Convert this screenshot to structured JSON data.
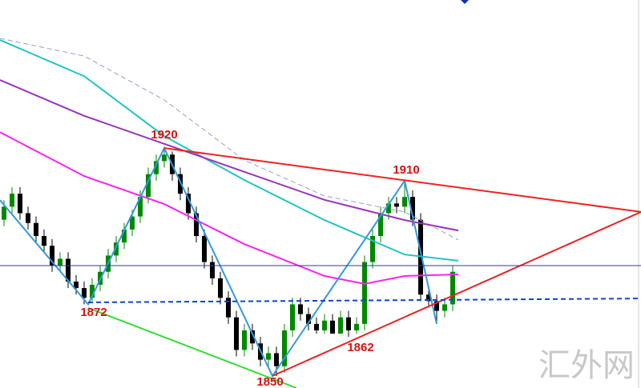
{
  "chart_data": {
    "type": "candlestick",
    "xlim": [
      -0.5,
      79.5
    ],
    "ylim": [
      1846.3,
      1965.5
    ],
    "up_color": "#008800",
    "down_color": "#000000",
    "open": [
      1898,
      1902,
      1906,
      1900,
      1897,
      1893,
      1890,
      1884,
      1886,
      1879,
      1877,
      1874,
      1878,
      1882,
      1887,
      1891,
      1895,
      1899,
      1905,
      1912,
      1916,
      1918,
      1912,
      1906,
      1900,
      1893,
      1885,
      1880,
      1874,
      1868,
      1858,
      1864,
      1860,
      1855,
      1857,
      1853,
      1864,
      1872,
      1869,
      1866,
      1864,
      1867,
      1863,
      1868,
      1864,
      1866,
      1885,
      1893,
      1900,
      1903,
      1902,
      1905,
      1898,
      1875,
      1873,
      1870,
      1872
    ],
    "high": [
      1904,
      1908,
      1908,
      1902,
      1899,
      1895,
      1892,
      1888,
      1888,
      1881,
      1879,
      1880,
      1884,
      1889,
      1893,
      1897,
      1901,
      1907,
      1914,
      1918,
      1920,
      1919,
      1914,
      1908,
      1902,
      1895,
      1887,
      1882,
      1876,
      1870,
      1866,
      1866,
      1862,
      1859,
      1859,
      1866,
      1874,
      1874,
      1871,
      1868,
      1869,
      1869,
      1870,
      1870,
      1868,
      1887,
      1895,
      1902,
      1905,
      1905,
      1910,
      1907,
      1900,
      1877,
      1875,
      1874,
      1884
    ],
    "low": [
      1896,
      1900,
      1898,
      1895,
      1891,
      1888,
      1882,
      1882,
      1877,
      1875,
      1872,
      1873,
      1876,
      1880,
      1885,
      1889,
      1893,
      1897,
      1903,
      1910,
      1914,
      1910,
      1904,
      1898,
      1891,
      1883,
      1878,
      1872,
      1866,
      1856,
      1856,
      1858,
      1853,
      1853,
      1850,
      1851,
      1862,
      1867,
      1864,
      1863,
      1863,
      1863,
      1863,
      1862,
      1863,
      1864,
      1883,
      1891,
      1898,
      1900,
      1900,
      1896,
      1873,
      1871,
      1866,
      1868,
      1870
    ],
    "close": [
      1902,
      1906,
      1900,
      1897,
      1893,
      1890,
      1884,
      1886,
      1879,
      1877,
      1874,
      1878,
      1882,
      1887,
      1891,
      1895,
      1899,
      1905,
      1912,
      1916,
      1918,
      1912,
      1906,
      1900,
      1893,
      1885,
      1880,
      1874,
      1868,
      1858,
      1864,
      1860,
      1855,
      1857,
      1853,
      1864,
      1872,
      1869,
      1866,
      1864,
      1867,
      1863,
      1868,
      1864,
      1866,
      1885,
      1893,
      1900,
      1903,
      1902,
      1905,
      1898,
      1875,
      1873,
      1870,
      1872,
      1882
    ],
    "lines": [
      {
        "color": "#9999cc",
        "dashed": true,
        "width": 1,
        "x": [
          -0.5,
          10,
          20,
          30,
          40,
          50,
          56.7
        ],
        "values": [
          1953.7,
          1948.3,
          1934.8,
          1916.3,
          1905.3,
          1900.4,
          1891.8
        ]
      },
      {
        "color": "#22c4c4",
        "dashed": false,
        "width": 2,
        "x": [
          -0.5,
          10,
          20,
          30,
          40,
          50,
          56.7
        ],
        "values": [
          1953.2,
          1942.1,
          1923.7,
          1910.2,
          1897.9,
          1887.3,
          1885.4
        ]
      },
      {
        "color": "#9933bb",
        "dashed": false,
        "width": 2,
        "x": [
          -0.5,
          10,
          20,
          30,
          40,
          50,
          56.7
        ],
        "values": [
          1940.9,
          1929.9,
          1921.3,
          1912.7,
          1904.1,
          1897.9,
          1894.7
        ]
      },
      {
        "color": "#ff22ee",
        "dashed": false,
        "width": 2,
        "x": [
          -0.5,
          10,
          20,
          30,
          40,
          45,
          50,
          56.7
        ],
        "values": [
          1924.9,
          1911.4,
          1902.8,
          1890.5,
          1880.7,
          1878.3,
          1880.7,
          1881.2
        ]
      },
      {
        "color": "#3399dd",
        "dashed": false,
        "width": 2,
        "x": [
          -0.5,
          10.5,
          20,
          33.5,
          50,
          54
        ],
        "values": [
          1904,
          1872,
          1920,
          1850,
          1910,
          1866
        ]
      },
      {
        "color": "#ee2222",
        "dashed": false,
        "width": 2,
        "x": [
          20,
          79.5
        ],
        "values": [
          1920,
          1900.4
        ]
      },
      {
        "color": "#ee2222",
        "dashed": false,
        "width": 2,
        "x": [
          33.5,
          79.5
        ],
        "values": [
          1850,
          1900.4
        ]
      },
      {
        "color": "#33dd33",
        "dashed": false,
        "width": 2,
        "x": [
          10.5,
          36.5
        ],
        "values": [
          1870.9,
          1846.3
        ]
      },
      {
        "color": "#3333bb",
        "dashed": false,
        "width": 1,
        "x": [
          -0.5,
          79.5
        ],
        "values": [
          1883.9,
          1883.9
        ]
      },
      {
        "color": "#1144cc",
        "dashed": true,
        "width": 2,
        "x": [
          10.5,
          79.5
        ],
        "values": [
          1872.6,
          1873.8
        ]
      }
    ],
    "annotations": [
      "1920",
      "1910",
      "1872",
      "1862",
      "1850"
    ],
    "watermark": "汇外网"
  }
}
